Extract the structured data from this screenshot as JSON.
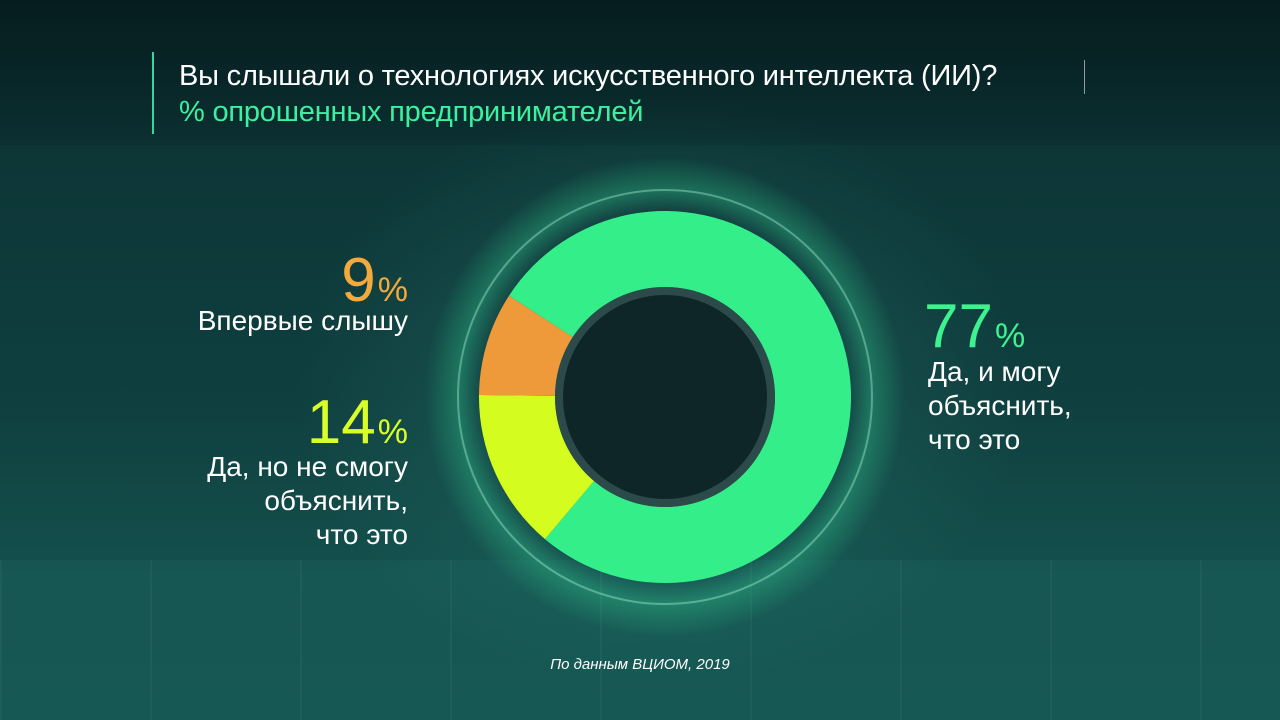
{
  "chart_data": {
    "type": "pie",
    "title": "Вы слышали о технологиях искусственного интеллекта (ИИ)?",
    "subtitle": "% опрошенных предпринимателей",
    "percent_sign": "%",
    "slices": [
      {
        "label_lines": [
          "Да, и могу",
          "объяснить,",
          "что это"
        ],
        "value": 77,
        "color": "#34ee8a"
      },
      {
        "label_lines": [
          "Да, но не смогу",
          "объяснить,",
          "что это"
        ],
        "value": 14,
        "color": "#d4fc1e"
      },
      {
        "label_lines": [
          "Впервые слышу"
        ],
        "value": 9,
        "color": "#ef9a3a"
      }
    ],
    "source": "По данным ВЦИОМ, 2019"
  }
}
